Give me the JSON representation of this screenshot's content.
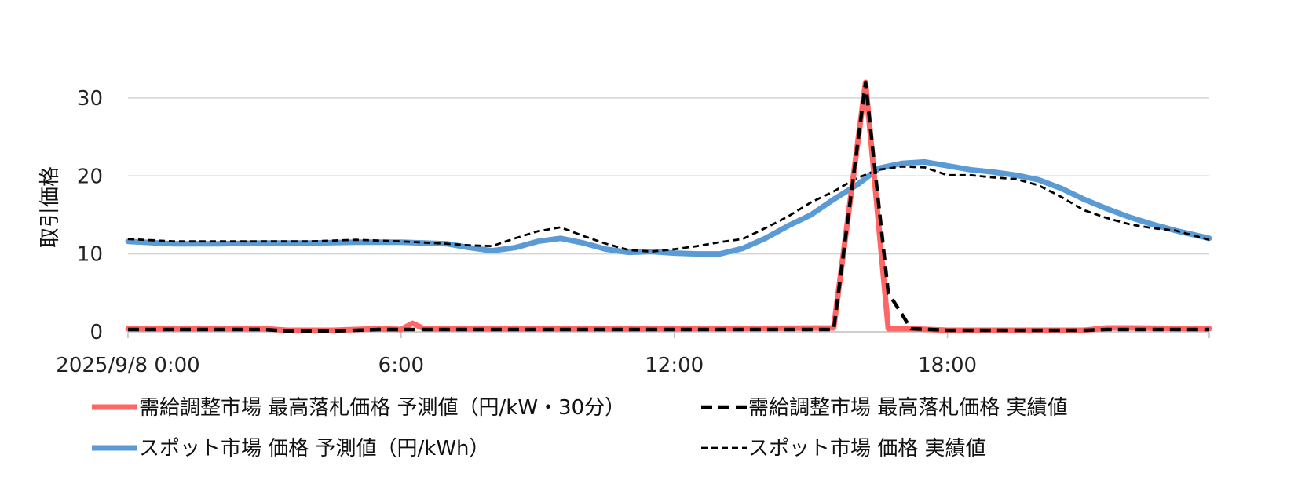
{
  "chart_data": {
    "type": "line",
    "ylabel": "取引価格",
    "ylim": [
      0,
      32
    ],
    "yticks": [
      0,
      10,
      20,
      30
    ],
    "xlim": [
      0,
      23.75
    ],
    "xticks": [
      {
        "x": 0,
        "label": "2025/9/8 0:00"
      },
      {
        "x": 6,
        "label": "6:00"
      },
      {
        "x": 12,
        "label": "12:00"
      },
      {
        "x": 18,
        "label": "18:00"
      }
    ],
    "grid": "horizontal",
    "legend_position": "bottom",
    "series": [
      {
        "name": "需給調整市場 最高落札価格 予測値（円/kW・30分）",
        "color": "#FF6666",
        "style": "solid-thick",
        "x": [
          0,
          3,
          3.5,
          4,
          4.5,
          5,
          5.5,
          6,
          6.25,
          6.5,
          7,
          12,
          15.5,
          16.2,
          16.7,
          17.2,
          18,
          21,
          21.5,
          22,
          23.75
        ],
        "values": [
          0.4,
          0.4,
          0.2,
          0.2,
          0.2,
          0.3,
          0.4,
          0.3,
          1.1,
          0.4,
          0.4,
          0.4,
          0.5,
          32,
          0.4,
          0.4,
          0.2,
          0.2,
          0.5,
          0.5,
          0.4
        ]
      },
      {
        "name": "需給調整市場 最高落札価格 実績値",
        "color": "#000000",
        "style": "dashed-thick",
        "x": [
          0,
          3,
          3.5,
          4,
          4.5,
          5,
          5.5,
          6,
          7,
          12,
          15.5,
          16.2,
          16.7,
          17.2,
          18,
          21,
          21.5,
          22,
          23.75
        ],
        "values": [
          0.3,
          0.3,
          0.1,
          0.1,
          0.1,
          0.2,
          0.3,
          0.3,
          0.3,
          0.3,
          0.3,
          32,
          5,
          0.4,
          0.2,
          0.2,
          0.3,
          0.3,
          0.3
        ]
      },
      {
        "name": "スポット市場 価格 予測値（円/kWh）",
        "color": "#5B9BD5",
        "style": "solid-thick",
        "x": [
          0,
          1,
          2,
          3,
          4,
          5,
          6,
          7,
          7.5,
          8,
          8.5,
          9,
          9.5,
          10,
          10.5,
          11,
          11.5,
          12,
          12.5,
          13,
          13.5,
          14,
          14.5,
          15,
          15.5,
          16,
          16.5,
          17,
          17.5,
          18,
          18.5,
          19,
          19.5,
          20,
          20.5,
          21,
          21.5,
          22,
          22.5,
          23,
          23.75
        ],
        "values": [
          11.6,
          11.3,
          11.3,
          11.4,
          11.4,
          11.5,
          11.5,
          11.3,
          10.8,
          10.4,
          10.8,
          11.6,
          12.0,
          11.4,
          10.6,
          10.2,
          10.3,
          10.1,
          10.0,
          10.0,
          10.7,
          12.0,
          13.6,
          15.0,
          17.0,
          18.8,
          21.0,
          21.6,
          21.8,
          21.3,
          20.8,
          20.5,
          20.1,
          19.5,
          18.4,
          17.0,
          15.8,
          14.7,
          13.8,
          13.0,
          12.0
        ]
      },
      {
        "name": "スポット市場 価格 実績値",
        "color": "#000000",
        "style": "dashed-thin",
        "x": [
          0,
          1,
          2,
          3,
          4,
          5,
          6,
          7,
          7.5,
          8,
          8.5,
          9,
          9.5,
          10,
          10.5,
          11,
          11.5,
          12,
          12.5,
          13,
          13.5,
          14,
          14.5,
          15,
          15.5,
          16,
          16.5,
          17,
          17.5,
          18,
          18.5,
          19,
          19.5,
          20,
          20.5,
          21,
          21.5,
          22,
          22.5,
          23,
          23.75
        ],
        "values": [
          11.9,
          11.6,
          11.6,
          11.6,
          11.6,
          11.8,
          11.6,
          11.3,
          11.1,
          11.0,
          12.0,
          12.9,
          13.4,
          12.3,
          11.3,
          10.5,
          10.3,
          10.6,
          11.0,
          11.5,
          11.9,
          13.3,
          14.8,
          16.6,
          18.0,
          19.7,
          20.8,
          21.2,
          21.1,
          20.1,
          20.1,
          19.8,
          19.6,
          18.8,
          17.3,
          15.6,
          14.6,
          13.8,
          13.3,
          13.0,
          11.8
        ]
      }
    ]
  }
}
